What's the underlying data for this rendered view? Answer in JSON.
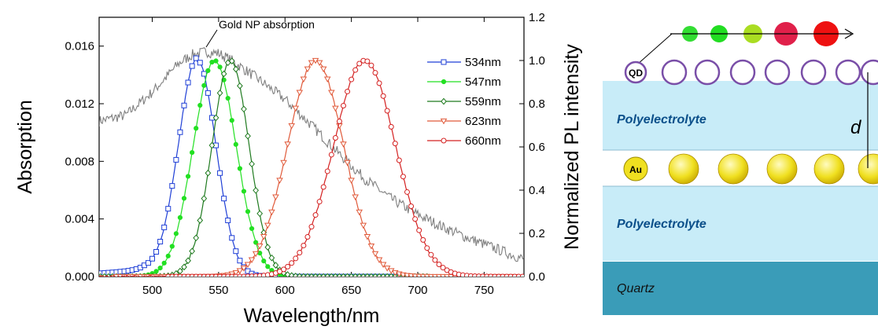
{
  "chart_data": {
    "type": "line",
    "title": "",
    "xlabel": "Wavelength/nm",
    "ylabel": "Absorption",
    "ylabel_right": "Normalized PL intensity",
    "xlim": [
      460,
      780
    ],
    "ylim": [
      0,
      0.018
    ],
    "ylim_right": [
      0,
      1.2
    ],
    "x_ticks": [
      500,
      550,
      600,
      650,
      700,
      750
    ],
    "y_ticks": [
      0.0,
      0.004,
      0.008,
      0.012,
      0.016
    ],
    "y_tick_labels": [
      "0.000",
      "0.004",
      "0.008",
      "0.012",
      "0.016"
    ],
    "y_right_ticks": [
      0.0,
      0.2,
      0.4,
      0.6,
      0.8,
      1.0,
      1.2
    ],
    "y_right_tick_labels": [
      "0.0",
      "0.2",
      "0.4",
      "0.6",
      "0.8",
      "1.0",
      "1.2"
    ],
    "grid": false,
    "legend_position": "top-right",
    "annotation": "Gold NP absorption",
    "absorption_series": {
      "color": "#7f7f7f",
      "x": [
        460,
        480,
        500,
        520,
        530,
        540,
        550,
        560,
        580,
        600,
        620,
        640,
        660,
        680,
        700,
        720,
        740,
        760,
        780
      ],
      "y": [
        0.0108,
        0.0112,
        0.0128,
        0.0148,
        0.0154,
        0.0156,
        0.0155,
        0.015,
        0.0137,
        0.0123,
        0.0105,
        0.0086,
        0.0068,
        0.0054,
        0.0043,
        0.0034,
        0.0026,
        0.0019,
        0.0012
      ]
    },
    "series": [
      {
        "name": "534nm",
        "color": "#1f3fd6",
        "marker": "square",
        "peak": 534,
        "fwhm": 33,
        "offset": 0.035,
        "tail": 40
      },
      {
        "name": "547nm",
        "color": "#22e022",
        "marker": "dot",
        "peak": 547,
        "fwhm": 38,
        "offset": 0.01,
        "tail": 0
      },
      {
        "name": "559nm",
        "color": "#1f7a1f",
        "marker": "diamond",
        "peak": 559,
        "fwhm": 33,
        "offset": 0.0,
        "tail": 0
      },
      {
        "name": "623nm",
        "color": "#e05a3a",
        "marker": "triangle",
        "peak": 623,
        "fwhm": 50,
        "offset": 0.0,
        "tail": 0
      },
      {
        "name": "660nm",
        "color": "#d42020",
        "marker": "circle",
        "peak": 660,
        "fwhm": 55,
        "offset": 0.0,
        "tail": 0
      }
    ]
  },
  "schematic": {
    "dots_colors": [
      "#33dd33",
      "#22dd22",
      "#aadd22",
      "#e0204a",
      "#ee1111"
    ],
    "qd_label": "QD",
    "au_label": "Au",
    "layer_top_label": "Polyelectrolyte",
    "layer_bottom_label": "Polyelectrolyte",
    "quartz_label": "Quartz",
    "distance_label": "d",
    "qd_ring_color": "#7a4fa8",
    "au_color": "#f0e020",
    "layer_color": "#c8ecf8",
    "quartz_color": "#3a9cb8"
  }
}
